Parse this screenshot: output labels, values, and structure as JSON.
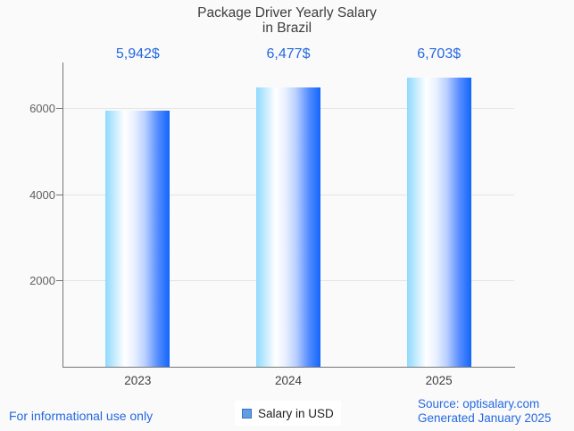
{
  "page": {
    "background_color": "#fafafa",
    "footer_left": "For informational use only",
    "source_line1": "Source: optisalary.com",
    "source_line2": "Generated January 2025"
  },
  "chart_data": {
    "type": "bar",
    "title": "Package Driver Yearly Salary in Brazil",
    "title_lines": [
      "Package Driver Yearly Salary",
      "in Brazil"
    ],
    "categories": [
      "2023",
      "2024",
      "2025"
    ],
    "values": [
      5942,
      6477,
      6703
    ],
    "value_labels": [
      "5,942$",
      "6,477$",
      "6,703$"
    ],
    "series_name": "Salary in USD",
    "xlabel": "",
    "ylabel": "",
    "yticks": [
      2000,
      4000,
      6000
    ],
    "ylim": [
      0,
      7050
    ],
    "grid": true,
    "legend_position": "bottom-center",
    "legend": [
      {
        "label": "Salary in USD",
        "swatch_fill": "#5f9ee0",
        "swatch_border": "#3e72bf"
      }
    ],
    "colors": {
      "value_label_text": "#2569e0",
      "blue_text": "#2569e0",
      "title_text": "#3d3d3d",
      "axis_line": "#757575",
      "gridline": "#e4e4e4",
      "ytick_label_text": "#616161",
      "xtick_label_text": "#404040",
      "legend_text": "#1f1f1f"
    },
    "bar_gradient_stops": [
      [
        "#8fd9fe",
        "0%"
      ],
      [
        "#ffffff",
        "30%"
      ],
      [
        "#e9f0ff",
        "45%"
      ],
      [
        "#b9cfff",
        "62%"
      ],
      [
        "#548cfe",
        "82%"
      ],
      [
        "#1266fb",
        "100%"
      ]
    ]
  }
}
